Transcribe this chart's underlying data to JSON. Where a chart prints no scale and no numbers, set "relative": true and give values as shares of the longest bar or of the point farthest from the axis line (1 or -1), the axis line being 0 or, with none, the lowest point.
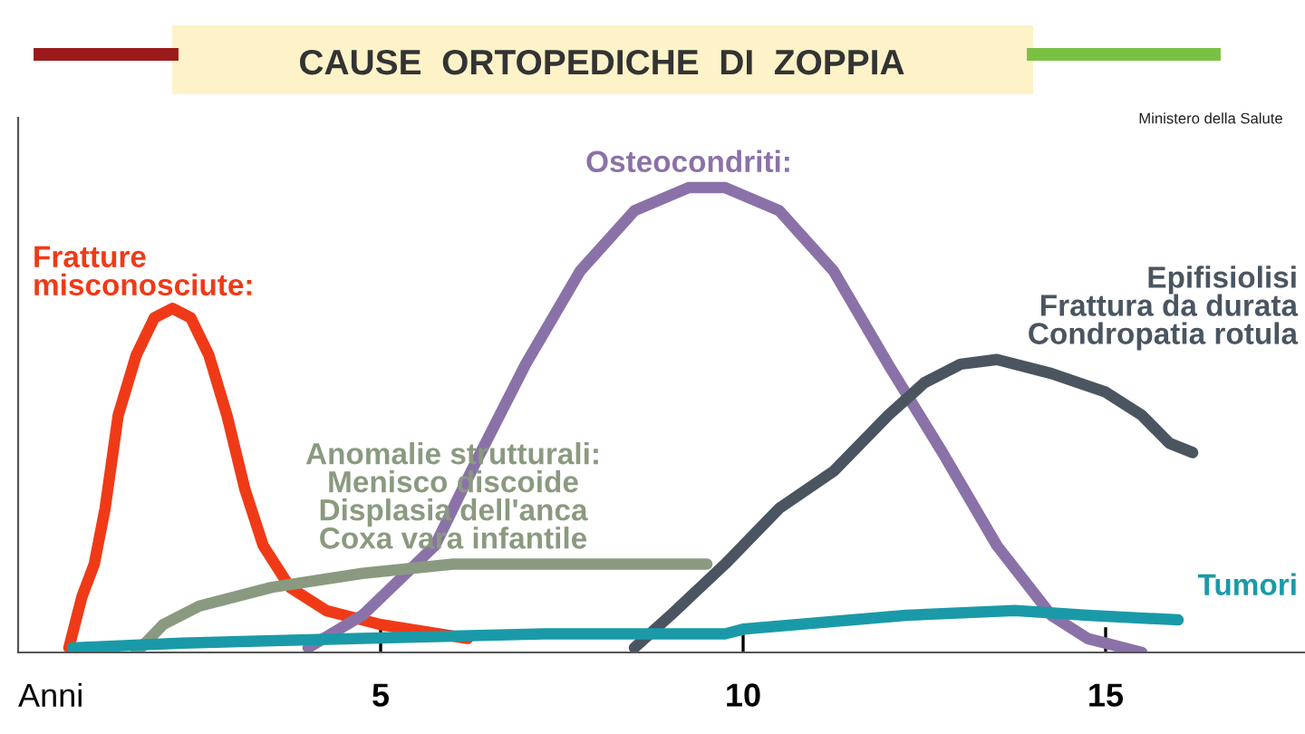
{
  "chart_data": {
    "type": "line",
    "title": "CAUSE  ORTOPEDICHE  DI  ZOPPIA",
    "xlabel": "Anni",
    "relative": true,
    "xlim": [
      0,
      17.75
    ],
    "xticks": [
      5,
      10,
      15
    ],
    "grid": false,
    "legend": false,
    "marker": "none",
    "line_style": "solid",
    "annotations": [
      "Ministero della Salute"
    ],
    "series": [
      {
        "name": "Fratture\nmisconosciute:",
        "color": "#f03a17",
        "x": [
          0.7,
          0.88,
          1.05,
          1.2,
          1.38,
          1.63,
          1.88,
          2.13,
          2.38,
          2.63,
          2.88,
          3.13,
          3.38,
          3.75,
          4.25,
          5,
          6.2
        ],
        "values": [
          0.01,
          0.12,
          0.19,
          0.31,
          0.51,
          0.64,
          0.72,
          0.74,
          0.72,
          0.64,
          0.51,
          0.35,
          0.23,
          0.14,
          0.09,
          0.06,
          0.03
        ]
      },
      {
        "name": "Osteocondriti:",
        "color": "#8a72a8",
        "x": [
          4,
          4.75,
          5.75,
          6.25,
          7,
          7.75,
          8.5,
          9.25,
          9.75,
          10.5,
          11.25,
          12,
          12.75,
          13.5,
          14.25,
          14.75,
          15.5
        ],
        "values": [
          0.01,
          0.08,
          0.23,
          0.39,
          0.62,
          0.82,
          0.95,
          1.0,
          1.0,
          0.95,
          0.82,
          0.62,
          0.43,
          0.23,
          0.08,
          0.03,
          0.0
        ]
      },
      {
        "name": "Epifisiolisi\nFrattura da durata\nCondropatia rotula",
        "color": "#4a5560",
        "x": [
          8.5,
          9,
          9.75,
          10.5,
          11.25,
          12,
          12.5,
          13,
          13.5,
          14.25,
          15,
          15.5,
          15.88,
          16.2
        ],
        "values": [
          0.01,
          0.08,
          0.19,
          0.31,
          0.39,
          0.51,
          0.58,
          0.62,
          0.63,
          0.6,
          0.56,
          0.51,
          0.45,
          0.43
        ]
      },
      {
        "name": "Anomalie strutturali:\nMenisco discoide\nDisplasia dell'anca\nCoxa vara infantile",
        "color": "#8a9a80",
        "x": [
          1.63,
          2,
          2.5,
          3.5,
          4.75,
          6,
          7.25,
          9.5
        ],
        "values": [
          0,
          0.06,
          0.1,
          0.14,
          0.17,
          0.19,
          0.19,
          0.19
        ]
      },
      {
        "name": "Tumori",
        "color": "#1a9aa8",
        "x": [
          0.75,
          2.25,
          4.75,
          7.25,
          9.75,
          10,
          12.25,
          13.75,
          14.75,
          16
        ],
        "values": [
          0.01,
          0.02,
          0.03,
          0.04,
          0.04,
          0.05,
          0.08,
          0.09,
          0.08,
          0.07
        ]
      }
    ]
  }
}
